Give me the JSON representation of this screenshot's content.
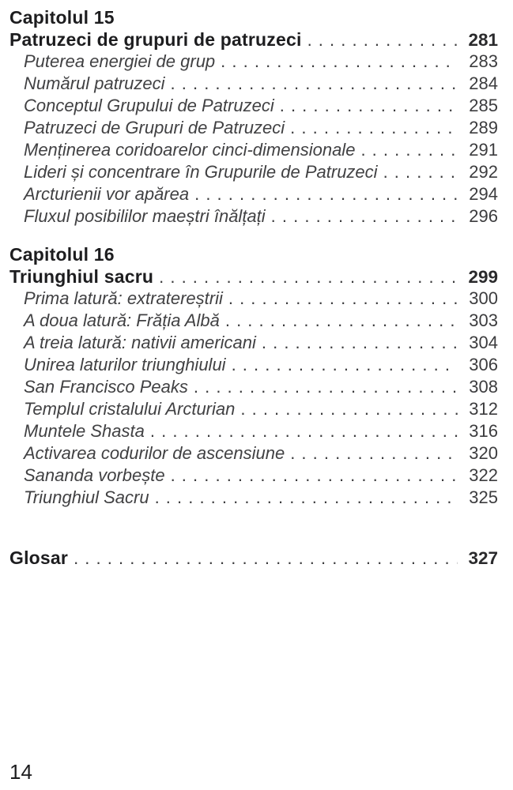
{
  "page": {
    "folio": "14"
  },
  "colors": {
    "background": "#ffffff",
    "heading_text": "#1d1d1f",
    "entry_text": "#414143"
  },
  "toc": {
    "sections": [
      {
        "chapter_label": "Capitolul 15",
        "title": "Patruzeci de grupuri de patruzeci",
        "page": "281",
        "entries": [
          {
            "title": "Puterea energiei de grup",
            "page": "283"
          },
          {
            "title": "Numărul patruzeci",
            "page": "284"
          },
          {
            "title": "Conceptul Grupului de Patruzeci",
            "page": "285"
          },
          {
            "title": "Patruzeci de Grupuri de Patruzeci",
            "page": "289"
          },
          {
            "title": "Menținerea coridoarelor cinci-dimensionale",
            "page": "291"
          },
          {
            "title": "Lideri și concentrare în Grupurile de Patruzeci",
            "page": "292"
          },
          {
            "title": "Arcturienii vor apărea",
            "page": "294"
          },
          {
            "title": "Fluxul posibililor maeștri înălțați",
            "page": "296"
          }
        ]
      },
      {
        "chapter_label": "Capitolul 16",
        "title": "Triunghiul sacru",
        "page": "299",
        "entries": [
          {
            "title": "Prima latură: extratereștrii",
            "page": "300"
          },
          {
            "title": "A doua latură: Frăția Albă",
            "page": "303"
          },
          {
            "title": "A treia latură: nativii americani",
            "page": "304"
          },
          {
            "title": "Unirea laturilor triunghiului",
            "page": "306"
          },
          {
            "title": "San Francisco Peaks",
            "page": "308"
          },
          {
            "title": "Templul cristalului Arcturian",
            "page": "312"
          },
          {
            "title": "Muntele Shasta",
            "page": "316"
          },
          {
            "title": "Activarea codurilor de ascensiune",
            "page": "320"
          },
          {
            "title": "Sananda vorbește",
            "page": "322"
          },
          {
            "title": "Triunghiul Sacru",
            "page": "325"
          }
        ]
      }
    ],
    "backmatter": [
      {
        "title": "Glosar",
        "page": "327"
      }
    ]
  }
}
